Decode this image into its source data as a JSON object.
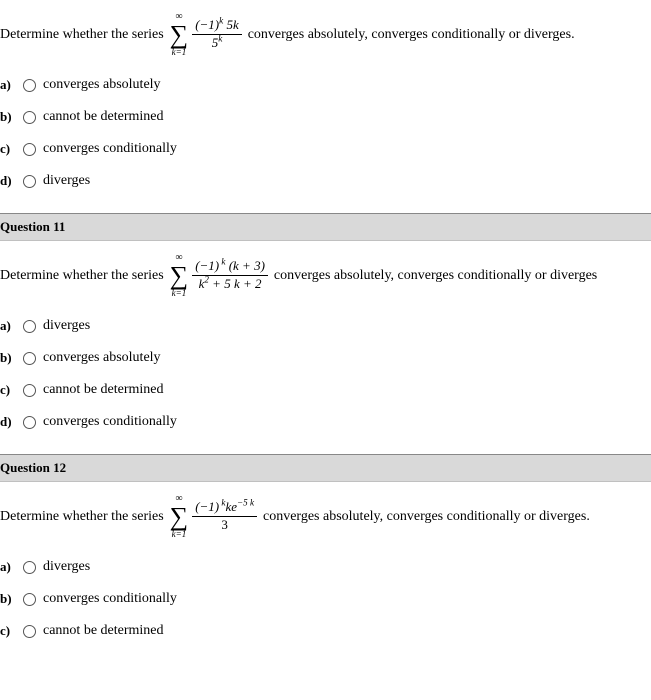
{
  "question10": {
    "prompt_lead": "Determine whether the series",
    "prompt_tail": "converges absolutely, converges conditionally or diverges.",
    "sum_top": "∞",
    "sum_bottom": "k=1",
    "frac_num": "(−1)ᵏ 5k",
    "frac_den": "5ᵏ",
    "options": [
      {
        "letter": "a)",
        "label": "converges absolutely"
      },
      {
        "letter": "b)",
        "label": "cannot be determined"
      },
      {
        "letter": "c)",
        "label": "converges conditionally"
      },
      {
        "letter": "d)",
        "label": "diverges"
      }
    ]
  },
  "question11": {
    "header": "Question 11",
    "prompt_lead": "Determine whether the series",
    "prompt_tail": "converges absolutely, converges conditionally or diverges",
    "sum_top": "∞",
    "sum_bottom": "k=1",
    "frac_num_html": "(−1)<sup> k</sup> (k + 3)",
    "frac_den_html": "k<sup>2</sup> + 5 k + 2",
    "options": [
      {
        "letter": "a)",
        "label": "diverges"
      },
      {
        "letter": "b)",
        "label": "converges absolutely"
      },
      {
        "letter": "c)",
        "label": "cannot be determined"
      },
      {
        "letter": "d)",
        "label": "converges conditionally"
      }
    ]
  },
  "question12": {
    "header": "Question 12",
    "prompt_lead": "Determine whether the series",
    "prompt_tail": "converges absolutely, converges conditionally or diverges.",
    "sum_top": "∞",
    "sum_bottom": "k=1",
    "frac_num_html": "(−1)<sup> k</sup>ke<sup>−5 k</sup>",
    "frac_den": "3",
    "options": [
      {
        "letter": "a)",
        "label": "diverges"
      },
      {
        "letter": "b)",
        "label": "converges conditionally"
      },
      {
        "letter": "c)",
        "label": "cannot be determined"
      }
    ]
  },
  "colors": {
    "header_bg": "#d9d9d9",
    "text": "#000000",
    "border": "#888888"
  }
}
